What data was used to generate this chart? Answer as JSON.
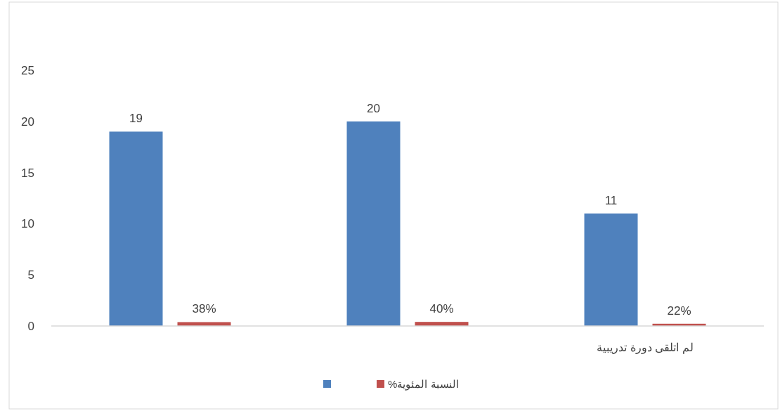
{
  "chart_data": {
    "type": "bar",
    "categories": [
      null,
      null,
      "لم اتلقى دورة تدريبية"
    ],
    "series": [
      {
        "color": "#4f81bd",
        "values": [
          19,
          20,
          11
        ],
        "value_labels": [
          "19",
          "20",
          "11"
        ]
      },
      {
        "name": "النسبة المئوية%",
        "color": "#c0504d",
        "values": [
          0.38,
          0.4,
          0.22
        ],
        "value_labels": [
          "38%",
          "40%",
          "22%"
        ]
      }
    ],
    "ylim": [
      0,
      25
    ],
    "yticks": [
      0,
      5,
      10,
      15,
      20,
      25
    ],
    "grid": false,
    "legend": "bottom"
  }
}
